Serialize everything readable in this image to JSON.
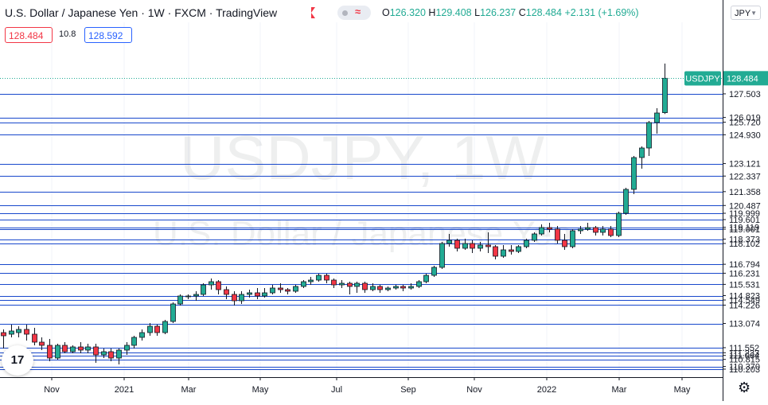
{
  "header": {
    "title": "U.S. Dollar / Japanese Yen · 1W · FXCM · TradingView",
    "ohlc_open_label": "O",
    "ohlc_open": "126.320",
    "ohlc_high_label": "H",
    "ohlc_high": "129.408",
    "ohlc_low_label": "L",
    "ohlc_low": "126.237",
    "ohlc_close_label": "C",
    "ohlc_close": "128.484",
    "ohlc_change": "+2.131 (+1.69%)"
  },
  "trade": {
    "sell_price": "128.484",
    "spread": "10.8",
    "buy_price": "128.592"
  },
  "currency_button": "JPY",
  "watermark": {
    "symbol": "USDJPY, 1W",
    "name": "U.S. Dollar / Japanese Yen"
  },
  "logo_text": "17",
  "colors": {
    "up": "#22ab94",
    "down": "#f23645",
    "line": "#2962ff",
    "grid": "#f0f3fa"
  },
  "chart_data": {
    "type": "candlestick",
    "symbol": "USDJPY",
    "timeframe": "1W",
    "ylim": [
      110.0,
      130.0
    ],
    "x_tick_labels": [
      "Nov",
      "2021",
      "Mar",
      "May",
      "Jul",
      "Sep",
      "Nov",
      "2022",
      "Mar",
      "May"
    ],
    "y_tick_labels": [
      "128.484",
      "127.503",
      "126.019",
      "125.720",
      "124.930",
      "123.121",
      "122.337",
      "121.358",
      "120.487",
      "119.999",
      "119.601",
      "119.119",
      "119.001",
      "118.373",
      "118.102",
      "116.794",
      "116.231",
      "115.531",
      "114.823",
      "114.549",
      "114.226",
      "113.074",
      "111.552",
      "111.233",
      "111.064",
      "110.815",
      "110.370",
      "110.203"
    ],
    "horizontal_levels": [
      127.503,
      126.019,
      125.72,
      124.93,
      123.121,
      122.337,
      121.358,
      120.487,
      119.999,
      119.601,
      119.119,
      119.001,
      118.373,
      118.102,
      116.794,
      116.231,
      115.531,
      114.823,
      114.549,
      114.226,
      113.074,
      111.552,
      111.233,
      111.064,
      110.815,
      110.37,
      110.203
    ],
    "last_price_label": "USDJPY",
    "last_price": 128.484,
    "candles": [
      {
        "o": 112.5,
        "h": 112.7,
        "c": 112.3,
        "l": 111.5
      },
      {
        "o": 112.4,
        "h": 113.0,
        "c": 112.6,
        "l": 112.2
      },
      {
        "o": 112.5,
        "h": 112.9,
        "c": 112.7,
        "l": 112.2
      },
      {
        "o": 112.7,
        "h": 113.0,
        "c": 112.4,
        "l": 112.0
      },
      {
        "o": 112.4,
        "h": 112.8,
        "c": 111.9,
        "l": 111.7
      },
      {
        "o": 111.9,
        "h": 112.2,
        "c": 111.7,
        "l": 111.4
      },
      {
        "o": 111.7,
        "h": 112.1,
        "c": 110.9,
        "l": 110.7
      },
      {
        "o": 110.9,
        "h": 111.8,
        "c": 111.7,
        "l": 110.8
      },
      {
        "o": 111.7,
        "h": 111.9,
        "c": 111.3,
        "l": 111.2
      },
      {
        "o": 111.3,
        "h": 111.7,
        "c": 111.6,
        "l": 111.2
      },
      {
        "o": 111.6,
        "h": 111.9,
        "c": 111.4,
        "l": 111.2
      },
      {
        "o": 111.4,
        "h": 111.8,
        "c": 111.6,
        "l": 111.2
      },
      {
        "o": 111.6,
        "h": 111.8,
        "c": 111.1,
        "l": 110.6
      },
      {
        "o": 111.1,
        "h": 111.5,
        "c": 111.3,
        "l": 110.9
      },
      {
        "o": 111.3,
        "h": 111.5,
        "c": 110.9,
        "l": 110.7
      },
      {
        "o": 110.9,
        "h": 111.5,
        "c": 111.4,
        "l": 110.5
      },
      {
        "o": 111.4,
        "h": 111.9,
        "c": 111.7,
        "l": 111.1
      },
      {
        "o": 111.7,
        "h": 112.3,
        "c": 112.2,
        "l": 111.5
      },
      {
        "o": 112.2,
        "h": 112.7,
        "c": 112.5,
        "l": 112.0
      },
      {
        "o": 112.5,
        "h": 113.1,
        "c": 112.9,
        "l": 112.3
      },
      {
        "o": 112.9,
        "h": 113.0,
        "c": 112.5,
        "l": 112.3
      },
      {
        "o": 112.5,
        "h": 113.3,
        "c": 113.2,
        "l": 112.4
      },
      {
        "o": 113.2,
        "h": 114.4,
        "c": 114.3,
        "l": 113.1
      },
      {
        "o": 114.3,
        "h": 114.9,
        "c": 114.8,
        "l": 114.2
      },
      {
        "o": 114.8,
        "h": 114.9,
        "c": 114.8,
        "l": 114.6
      },
      {
        "o": 114.8,
        "h": 115.1,
        "c": 114.9,
        "l": 114.5
      },
      {
        "o": 114.9,
        "h": 115.6,
        "c": 115.5,
        "l": 114.8
      },
      {
        "o": 115.5,
        "h": 115.9,
        "c": 115.7,
        "l": 115.2
      },
      {
        "o": 115.7,
        "h": 115.8,
        "c": 115.2,
        "l": 114.9
      },
      {
        "o": 115.2,
        "h": 115.4,
        "c": 114.9,
        "l": 114.6
      },
      {
        "o": 114.9,
        "h": 115.1,
        "c": 114.5,
        "l": 114.2
      },
      {
        "o": 114.5,
        "h": 115.1,
        "c": 114.9,
        "l": 114.3
      },
      {
        "o": 114.9,
        "h": 115.2,
        "c": 115.0,
        "l": 114.7
      },
      {
        "o": 115.0,
        "h": 115.3,
        "c": 114.8,
        "l": 114.6
      },
      {
        "o": 114.8,
        "h": 115.3,
        "c": 115.0,
        "l": 114.7
      },
      {
        "o": 115.0,
        "h": 115.5,
        "c": 115.3,
        "l": 114.9
      },
      {
        "o": 115.3,
        "h": 115.6,
        "c": 115.2,
        "l": 115.0
      },
      {
        "o": 115.2,
        "h": 115.3,
        "c": 115.1,
        "l": 114.9
      },
      {
        "o": 115.1,
        "h": 115.5,
        "c": 115.4,
        "l": 115.0
      },
      {
        "o": 115.4,
        "h": 115.8,
        "c": 115.7,
        "l": 115.3
      },
      {
        "o": 115.7,
        "h": 116.0,
        "c": 115.8,
        "l": 115.5
      },
      {
        "o": 115.8,
        "h": 116.2,
        "c": 116.1,
        "l": 115.7
      },
      {
        "o": 116.1,
        "h": 116.2,
        "c": 115.8,
        "l": 115.6
      },
      {
        "o": 115.8,
        "h": 115.9,
        "c": 115.5,
        "l": 115.3
      },
      {
        "o": 115.5,
        "h": 115.8,
        "c": 115.6,
        "l": 115.3
      },
      {
        "o": 115.6,
        "h": 115.7,
        "c": 115.4,
        "l": 114.9
      },
      {
        "o": 115.4,
        "h": 115.7,
        "c": 115.6,
        "l": 115.0
      },
      {
        "o": 115.6,
        "h": 115.7,
        "c": 115.2,
        "l": 115.0
      },
      {
        "o": 115.2,
        "h": 115.6,
        "c": 115.4,
        "l": 115.1
      },
      {
        "o": 115.4,
        "h": 115.5,
        "c": 115.2,
        "l": 115.0
      },
      {
        "o": 115.2,
        "h": 115.4,
        "c": 115.3,
        "l": 115.1
      },
      {
        "o": 115.3,
        "h": 115.5,
        "c": 115.4,
        "l": 115.2
      },
      {
        "o": 115.4,
        "h": 115.5,
        "c": 115.3,
        "l": 115.1
      },
      {
        "o": 115.3,
        "h": 115.6,
        "c": 115.4,
        "l": 115.2
      },
      {
        "o": 115.4,
        "h": 115.8,
        "c": 115.7,
        "l": 115.3
      },
      {
        "o": 115.7,
        "h": 116.2,
        "c": 116.1,
        "l": 115.6
      },
      {
        "o": 116.1,
        "h": 116.7,
        "c": 116.6,
        "l": 116.0
      },
      {
        "o": 116.6,
        "h": 118.2,
        "c": 118.1,
        "l": 116.5
      },
      {
        "o": 118.1,
        "h": 118.7,
        "c": 118.3,
        "l": 117.9
      },
      {
        "o": 118.3,
        "h": 118.4,
        "c": 117.8,
        "l": 117.6
      },
      {
        "o": 117.8,
        "h": 118.4,
        "c": 118.1,
        "l": 117.7
      },
      {
        "o": 118.1,
        "h": 118.3,
        "c": 117.8,
        "l": 117.5
      },
      {
        "o": 117.8,
        "h": 118.2,
        "c": 118.0,
        "l": 117.6
      },
      {
        "o": 118.0,
        "h": 118.8,
        "c": 117.9,
        "l": 117.5
      },
      {
        "o": 117.9,
        "h": 118.0,
        "c": 117.3,
        "l": 117.1
      },
      {
        "o": 117.3,
        "h": 118.0,
        "c": 117.7,
        "l": 117.2
      },
      {
        "o": 117.7,
        "h": 118.0,
        "c": 117.6,
        "l": 117.4
      },
      {
        "o": 117.6,
        "h": 118.0,
        "c": 117.9,
        "l": 117.5
      },
      {
        "o": 117.9,
        "h": 118.4,
        "c": 118.3,
        "l": 117.8
      },
      {
        "o": 118.3,
        "h": 118.8,
        "c": 118.7,
        "l": 118.2
      },
      {
        "o": 118.7,
        "h": 119.3,
        "c": 119.1,
        "l": 118.6
      },
      {
        "o": 119.1,
        "h": 119.4,
        "c": 119.0,
        "l": 118.8
      },
      {
        "o": 119.0,
        "h": 119.2,
        "c": 118.3,
        "l": 118.1
      },
      {
        "o": 118.3,
        "h": 118.7,
        "c": 117.9,
        "l": 117.7
      },
      {
        "o": 117.9,
        "h": 119.0,
        "c": 118.9,
        "l": 117.8
      },
      {
        "o": 118.9,
        "h": 119.2,
        "c": 119.0,
        "l": 118.7
      },
      {
        "o": 119.0,
        "h": 119.4,
        "c": 119.1,
        "l": 118.9
      },
      {
        "o": 119.1,
        "h": 119.2,
        "c": 118.8,
        "l": 118.6
      },
      {
        "o": 118.8,
        "h": 119.2,
        "c": 119.0,
        "l": 118.6
      },
      {
        "o": 119.0,
        "h": 119.2,
        "c": 118.6,
        "l": 118.5
      },
      {
        "o": 118.6,
        "h": 120.1,
        "c": 120.0,
        "l": 118.5
      },
      {
        "o": 120.0,
        "h": 121.6,
        "c": 121.5,
        "l": 119.9
      },
      {
        "o": 121.5,
        "h": 123.6,
        "c": 123.5,
        "l": 121.2
      },
      {
        "o": 123.5,
        "h": 124.2,
        "c": 124.1,
        "l": 122.8
      },
      {
        "o": 124.1,
        "h": 125.8,
        "c": 125.7,
        "l": 123.6
      },
      {
        "o": 125.7,
        "h": 126.6,
        "c": 126.3,
        "l": 125.0
      },
      {
        "o": 126.32,
        "h": 129.408,
        "c": 128.484,
        "l": 126.237
      }
    ]
  }
}
